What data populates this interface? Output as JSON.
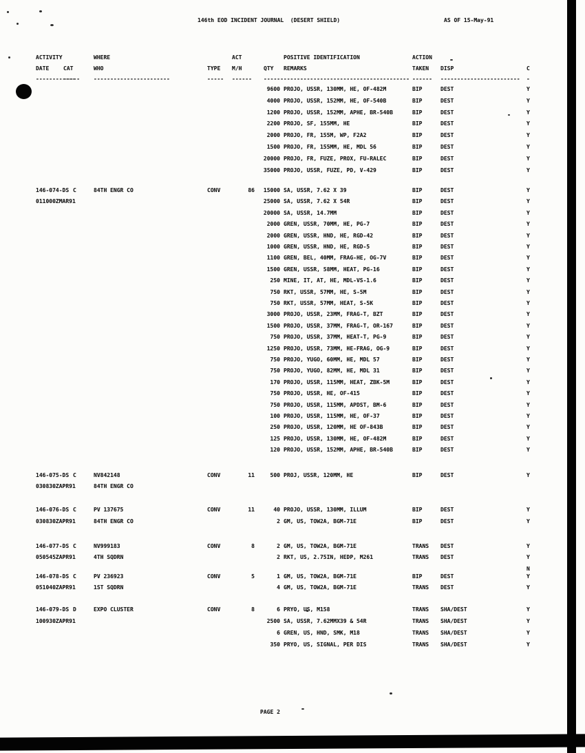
{
  "page": {
    "title": "146th EOD INCIDENT JOURNAL  (DESERT SHIELD)",
    "as_of": "AS OF 15-May-91",
    "footer": "PAGE 2"
  },
  "columns": {
    "h1": {
      "activity": "ACTIVITY",
      "where": "WHERE",
      "act": "ACT",
      "pos_id": "POSITIVE IDENTIFICATION",
      "action": "ACTION"
    },
    "h2": {
      "date": "DATE",
      "cat": "CAT",
      "who": "WHO",
      "type": "TYPE",
      "mh": "M/H",
      "qty": "QTY",
      "remarks": "REMARKS",
      "taken": "TAKEN",
      "disp": "DISP",
      "c": "C"
    },
    "dashes": {
      "date": "------------",
      "cat": "-----",
      "who": "-----------------------",
      "type": "-----",
      "mh": "------",
      "qtyrem": "--------------------------------------------",
      "taken": "------",
      "disp": "------------------------",
      "c": "-"
    }
  },
  "entries": [
    {
      "id": "",
      "date2": "",
      "cat": "",
      "who": [],
      "type": "",
      "mh": "",
      "items": [
        {
          "qty": "9600",
          "remarks": "PROJO, USSR, 130MM, HE, OF-482M",
          "taken": "BIP",
          "disp": "DEST",
          "c": "Y"
        },
        {
          "qty": "4000",
          "remarks": "PROJO, USSR, 152MM, HE, OF-540B",
          "taken": "BIP",
          "disp": "DEST",
          "c": "Y"
        },
        {
          "qty": "1200",
          "remarks": "PROJO, USSR, 152MM, APHE, BR-540B",
          "taken": "BIP",
          "disp": "DEST",
          "c": "Y"
        },
        {
          "qty": "2200",
          "remarks": "PROJO, SF, 155MM, HE",
          "taken": "BIP",
          "disp": "DEST",
          "c": "Y"
        },
        {
          "qty": "2000",
          "remarks": "PROJO, FR, 155M, WP, F2A2",
          "taken": "BIP",
          "disp": "DEST",
          "c": "Y"
        },
        {
          "qty": "1500",
          "remarks": "PROJO, FR, 155MM, HE, MDL 56",
          "taken": "BIP",
          "disp": "DEST",
          "c": "Y"
        },
        {
          "qty": "20000",
          "remarks": "PROJO, FR, FUZE, PROX, FU-RALEC",
          "taken": "BIP",
          "disp": "DEST",
          "c": "Y"
        },
        {
          "qty": "35000",
          "remarks": "PROJO, USSR, FUZE, PD, V-429",
          "taken": "BIP",
          "disp": "DEST",
          "c": "Y"
        }
      ]
    },
    {
      "id": "146-074-DS",
      "date2": "011000ZMAR91",
      "cat": "C",
      "who": [
        "84TH ENGR CO"
      ],
      "type": "CONV",
      "mh": "86",
      "items": [
        {
          "qty": "15000",
          "remarks": "SA, USSR, 7.62 X 39",
          "taken": "BIP",
          "disp": "DEST",
          "c": "Y"
        },
        {
          "qty": "25000",
          "remarks": "SA, USSR, 7.62 X 54R",
          "taken": "BIP",
          "disp": "DEST",
          "c": "Y"
        },
        {
          "qty": "20000",
          "remarks": "SA, USSR, 14.7MM",
          "taken": "BIP",
          "disp": "DEST",
          "c": "Y"
        },
        {
          "qty": "2000",
          "remarks": "GREN, USSR, 70MM, HE, PG-7",
          "taken": "BIP",
          "disp": "DEST",
          "c": "Y"
        },
        {
          "qty": "2000",
          "remarks": "GREN, USSR, HND, HE, RGD-42",
          "taken": "BIP",
          "disp": "DEST",
          "c": "Y"
        },
        {
          "qty": "1000",
          "remarks": "GREN, USSR, HND, HE, RGD-5",
          "taken": "BIP",
          "disp": "DEST",
          "c": "Y"
        },
        {
          "qty": "1100",
          "remarks": "GREN, BEL, 40MM, FRAG-HE, OG-7V",
          "taken": "BIP",
          "disp": "DEST",
          "c": "Y"
        },
        {
          "qty": "1500",
          "remarks": "GREN, USSR, 58MM, HEAT, PG-16",
          "taken": "BIP",
          "disp": "DEST",
          "c": "Y"
        },
        {
          "qty": "250",
          "remarks": "MINE, IT, AT, HE, MDL-VS-1.6",
          "taken": "BIP",
          "disp": "DEST",
          "c": "Y"
        },
        {
          "qty": "750",
          "remarks": "RKT, USSR, 57MM, HE, S-5M",
          "taken": "BIP",
          "disp": "DEST",
          "c": "Y"
        },
        {
          "qty": "750",
          "remarks": "RKT, USSR, 57MM, HEAT, S-5K",
          "taken": "BIP",
          "disp": "DEST",
          "c": "Y"
        },
        {
          "qty": "3000",
          "remarks": "PROJO, USSR, 23MM, FRAG-T, BZT",
          "taken": "BIP",
          "disp": "DEST",
          "c": "Y"
        },
        {
          "qty": "1500",
          "remarks": "PROJO, USSR, 37MM, FRAG-T, OR-167",
          "taken": "BIP",
          "disp": "DEST",
          "c": "Y"
        },
        {
          "qty": "750",
          "remarks": "PROJO, USSR, 37MM, HEAT-T, PG-9",
          "taken": "BIP",
          "disp": "DEST",
          "c": "Y"
        },
        {
          "qty": "1250",
          "remarks": "PROJO, USSR, 73MM, HE-FRAG, OG-9",
          "taken": "BIP",
          "disp": "DEST",
          "c": "Y"
        },
        {
          "qty": "750",
          "remarks": "PROJO, YUGO, 60MM, HE, MDL 57",
          "taken": "BIP",
          "disp": "DEST",
          "c": "Y"
        },
        {
          "qty": "750",
          "remarks": "PROJO, YUGO, 82MM, HE, MDL 31",
          "taken": "BIP",
          "disp": "DEST",
          "c": "Y"
        },
        {
          "qty": "170",
          "remarks": "PROJO, USSR, 115MM, HEAT, ZBK-5M",
          "taken": "BIP",
          "disp": "DEST",
          "c": "Y"
        },
        {
          "qty": "750",
          "remarks": "PROJO, USSR, HE, OF-415",
          "taken": "BIP",
          "disp": "DEST",
          "c": "Y"
        },
        {
          "qty": "750",
          "remarks": "PROJO, USSR, 115MM, APDST, BM-6",
          "taken": "BIP",
          "disp": "DEST",
          "c": "Y"
        },
        {
          "qty": "100",
          "remarks": "PROJO, USSR, 115MM, HE, OF-37",
          "taken": "BIP",
          "disp": "DEST",
          "c": "Y"
        },
        {
          "qty": "250",
          "remarks": "PROJO, USSR, 120MM, HE OF-843B",
          "taken": "BIP",
          "disp": "DEST",
          "c": "Y"
        },
        {
          "qty": "125",
          "remarks": "PROJO, USSR, 130MM, HE, OF-482M",
          "taken": "BIP",
          "disp": "DEST",
          "c": "Y"
        },
        {
          "qty": "120",
          "remarks": "PROJO, USSR, 152MM, APHE, BR-540B",
          "taken": "BIP",
          "disp": "DEST",
          "c": "Y"
        }
      ]
    },
    {
      "id": "146-075-DS",
      "date2": "030830ZAPR91",
      "cat": "C",
      "who": [
        "NV842148",
        "84TH ENGR CO"
      ],
      "type": "CONV",
      "mh": "11",
      "items": [
        {
          "qty": "500",
          "remarks": "PROJ, USSR, 120MM, HE",
          "taken": "BIP",
          "disp": "DEST",
          "c": "Y"
        }
      ]
    },
    {
      "id": "146-076-DS",
      "date2": "030830ZAPR91",
      "cat": "C",
      "who": [
        "PV 137675",
        "84TH ENGR CO"
      ],
      "type": "CONV",
      "mh": "11",
      "items": [
        {
          "qty": "40",
          "remarks": "PROJO, USSR, 130MM, ILLUM",
          "taken": "BIP",
          "disp": "DEST",
          "c": "Y"
        },
        {
          "qty": "2",
          "remarks": "GM, US, TOW2A, BGM-71E",
          "taken": "BIP",
          "disp": "DEST",
          "c": "Y"
        }
      ]
    },
    {
      "id": "146-077-DS",
      "date2": "050545ZAPR91",
      "cat": "C",
      "who": [
        "NV999183",
        "4TH SQDRN"
      ],
      "type": "CONV",
      "mh": "8",
      "items": [
        {
          "qty": "2",
          "remarks": "GM, US, TOW2A, BGM-71E",
          "taken": "TRANS",
          "disp": "DEST",
          "c": "Y"
        },
        {
          "qty": "2",
          "remarks": "RKT, US, 2.75IN, HEDP, M261",
          "taken": "TRANS",
          "disp": "DEST",
          "c": "Y"
        },
        {
          "qty": "",
          "remarks": "",
          "taken": "",
          "disp": "",
          "c": "N"
        }
      ]
    },
    {
      "id": "146-078-DS",
      "date2": "051040ZAPR91",
      "cat": "C",
      "who": [
        "PV 236923",
        "1ST SQDRN"
      ],
      "type": "CONV",
      "mh": "5",
      "items": [
        {
          "qty": "1",
          "remarks": "GM, US, TOW2A, BGM-71E",
          "taken": "BIP",
          "disp": "DEST",
          "c": "Y"
        },
        {
          "qty": "4",
          "remarks": "GM, US, TOW2A, BGM-71E",
          "taken": "TRANS",
          "disp": "DEST",
          "c": "Y"
        }
      ]
    },
    {
      "id": "146-079-DS",
      "date2": "100930ZAPR91",
      "cat": "D",
      "who": [
        "EXPO CLUSTER"
      ],
      "type": "CONV",
      "mh": "8",
      "items": [
        {
          "qty": "6",
          "remarks": "PRYO, US, M158",
          "taken": "TRANS",
          "disp": "SHA/DEST",
          "c": "Y"
        },
        {
          "qty": "2500",
          "remarks": "SA, USSR, 7.62MMX39 & 54R",
          "taken": "TRANS",
          "disp": "SHA/DEST",
          "c": "Y"
        },
        {
          "qty": "6",
          "remarks": "GREN, US, HND, SMK, M18",
          "taken": "TRANS",
          "disp": "SHA/DEST",
          "c": "Y"
        },
        {
          "qty": "350",
          "remarks": "PRYO, US, SIGNAL, PER DIS",
          "taken": "TRANS",
          "disp": "SHA/DEST",
          "c": "Y"
        }
      ]
    }
  ]
}
